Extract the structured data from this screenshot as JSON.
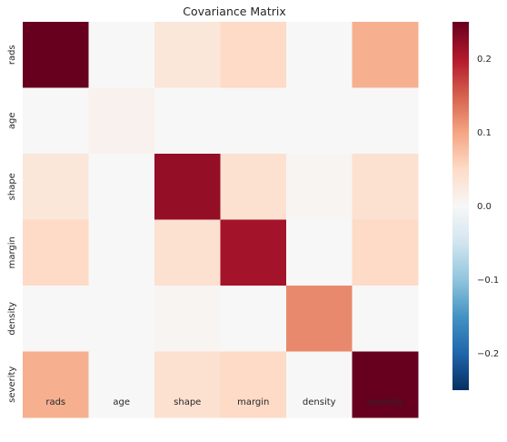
{
  "chart_data": {
    "type": "heatmap",
    "title": "Covariance Matrix",
    "xlabel": "",
    "ylabel": "",
    "x_categories": [
      "rads",
      "age",
      "shape",
      "margin",
      "density",
      "severity"
    ],
    "y_categories": [
      "rads",
      "age",
      "shape",
      "margin",
      "density",
      "severity"
    ],
    "values": [
      [
        0.25,
        0.0,
        0.03,
        0.05,
        0.0,
        0.09
      ],
      [
        0.0,
        0.01,
        0.0,
        0.0,
        0.0,
        0.0
      ],
      [
        0.03,
        0.0,
        0.22,
        0.04,
        0.005,
        0.04
      ],
      [
        0.05,
        0.0,
        0.04,
        0.21,
        0.0,
        0.05
      ],
      [
        0.0,
        0.0,
        0.005,
        0.0,
        0.12,
        0.0
      ],
      [
        0.09,
        0.0,
        0.04,
        0.05,
        0.0,
        0.25
      ]
    ],
    "colorbar": {
      "vmin": -0.25,
      "vmax": 0.25,
      "colormap": "RdBu_r",
      "ticks": [
        0.2,
        0.1,
        0.0,
        -0.1,
        -0.2
      ],
      "tick_labels": [
        "0.2",
        "0.1",
        "0.0",
        "−0.1",
        "−0.2"
      ]
    },
    "grid": false,
    "legend": "colorbar-right"
  }
}
